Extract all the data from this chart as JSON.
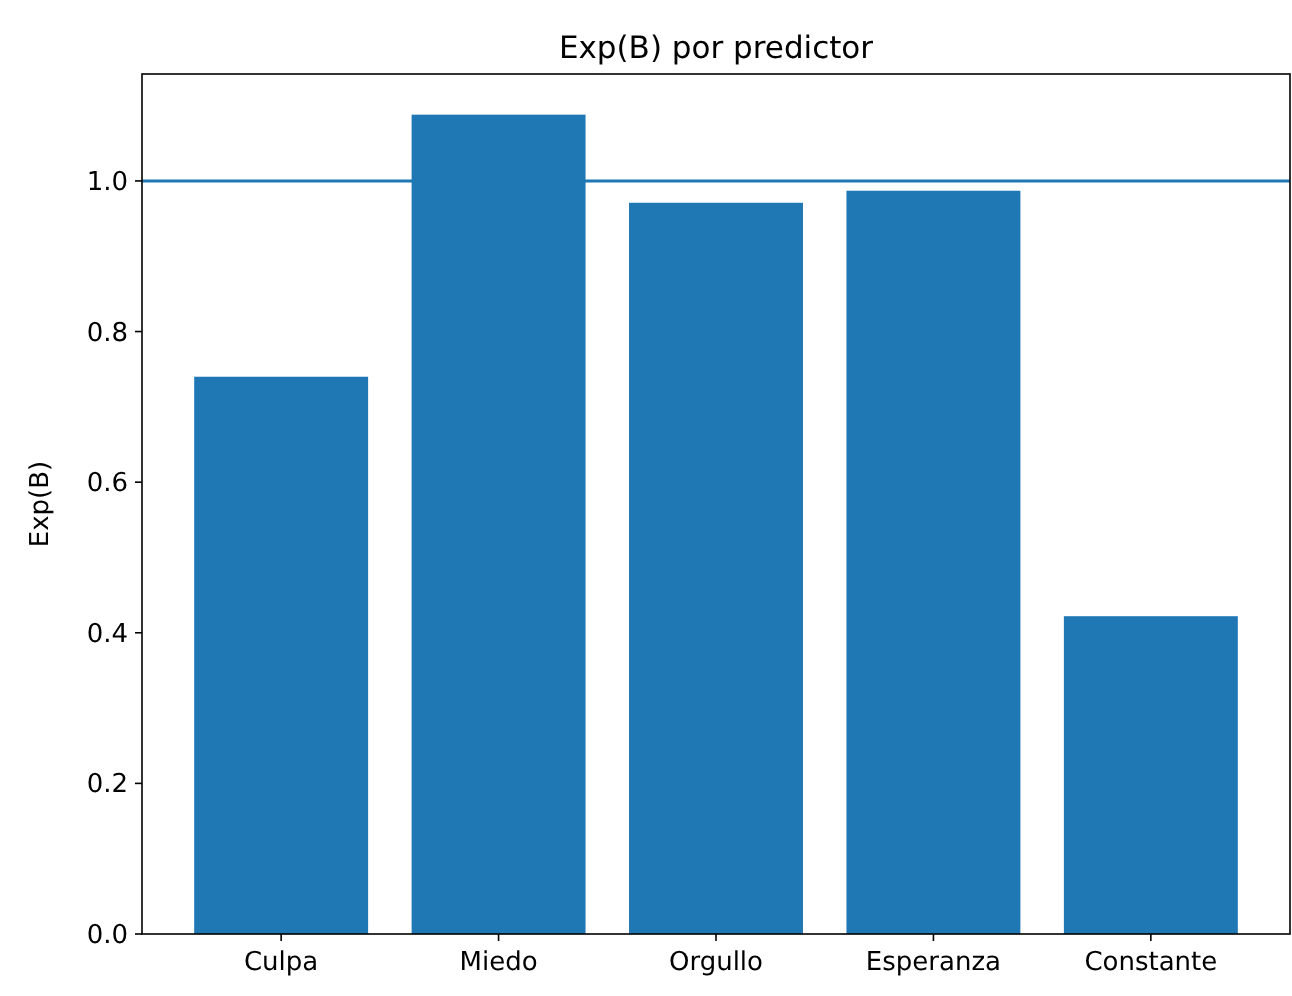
{
  "chart_data": {
    "type": "bar",
    "title": "Exp(B) por predictor",
    "ylabel": "Exp(B)",
    "categories": [
      "Culpa",
      "Miedo",
      "Orgullo",
      "Esperanza",
      "Constante"
    ],
    "values": [
      0.74,
      1.088,
      0.971,
      0.987,
      0.422
    ],
    "color": "#1f77b4",
    "ylim": [
      0,
      1.142
    ],
    "yticks": [
      {
        "value": 0,
        "label": "0.0"
      },
      {
        "value": 0.2,
        "label": "0.2"
      },
      {
        "value": 0.4,
        "label": "0.4"
      },
      {
        "value": 0.6,
        "label": "0.6"
      },
      {
        "value": 0.8,
        "label": "0.8"
      },
      {
        "value": 1,
        "label": "1.0"
      }
    ],
    "ref_lines": [
      {
        "axis": "y",
        "value": 1,
        "label": null,
        "color": "#1f77b4"
      }
    ]
  }
}
